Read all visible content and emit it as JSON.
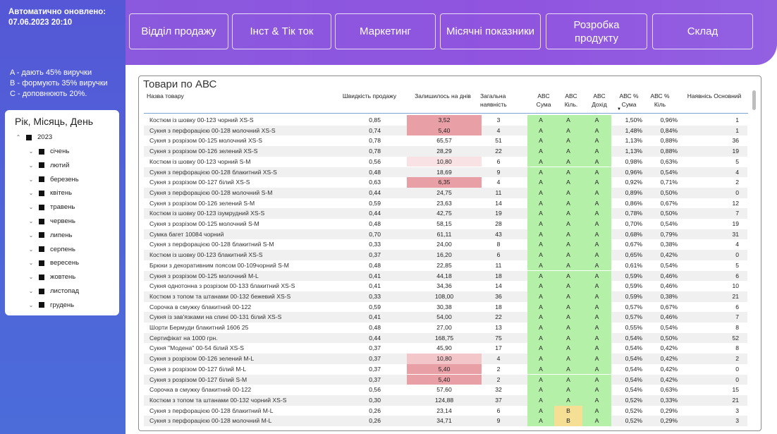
{
  "sidebar": {
    "updated_label": "Автоматично оновлено:",
    "updated_value": "07.06.2023 20:10",
    "legend": [
      "A - дають 45% виручки",
      "B - формують 35% виручки",
      "C - доповнюють 20%."
    ],
    "slicer": {
      "title": "Рік, Місяць, День",
      "year": "2023",
      "months": [
        "січень",
        "лютий",
        "березень",
        "квітень",
        "травень",
        "червень",
        "липень",
        "серпень",
        "вересень",
        "жовтень",
        "листопад",
        "грудень"
      ]
    }
  },
  "nav": [
    {
      "label": "Відділ продажу",
      "name": "nav-sales-department"
    },
    {
      "label": "Інст & Тік ток",
      "name": "nav-insta-tiktok"
    },
    {
      "label": "Маркетинг",
      "name": "nav-marketing"
    },
    {
      "label": "Місячні показники",
      "name": "nav-monthly-metrics"
    },
    {
      "label": "Розробка продукту",
      "name": "nav-product-development"
    },
    {
      "label": "Склад",
      "name": "nav-warehouse"
    }
  ],
  "table": {
    "title": "Товари по АВС",
    "columns": [
      "Назва товару",
      "Швидкість продажу",
      "Залишилось на днів",
      "Загальна наявність",
      "АВС Сума",
      "АВС Кіль.",
      "АВС Дохід",
      "АВС % Сума",
      "АВС % Кіль",
      "Наявнісь Основний"
    ],
    "sorted_column": "АВС % Сума",
    "sort_direction": "descending",
    "colors": {
      "abc_a": "#b5f0a8",
      "abc_b": "#f5df94",
      "low_stock_strong": "#e8a0a6",
      "low_stock_medium": "#f3c6ca",
      "low_stock_light": "#f9e2e4"
    },
    "rows": [
      {
        "name": "Костюм із шовку 00-123 чорний XS-S",
        "speed": "0,85",
        "days": "3,52",
        "total": "3",
        "abc_sum": "A",
        "abc_qty": "A",
        "abc_income": "A",
        "pct_sum": "1,50%",
        "pct_qty": "0,96%",
        "stock": "1",
        "days_level": "strong"
      },
      {
        "name": "Сукня з перфорацією 00-128 молочний XS-S",
        "speed": "0,74",
        "days": "5,40",
        "total": "4",
        "abc_sum": "A",
        "abc_qty": "A",
        "abc_income": "A",
        "pct_sum": "1,48%",
        "pct_qty": "0,84%",
        "stock": "1",
        "days_level": "strong"
      },
      {
        "name": "Сукня з розрізом 00-125 молочний XS-S",
        "speed": "0,78",
        "days": "65,57",
        "total": "51",
        "abc_sum": "A",
        "abc_qty": "A",
        "abc_income": "A",
        "pct_sum": "1,13%",
        "pct_qty": "0,88%",
        "stock": "36",
        "days_level": ""
      },
      {
        "name": "Сукня з розрізом 00-126 зелений XS-S",
        "speed": "0,78",
        "days": "28,29",
        "total": "22",
        "abc_sum": "A",
        "abc_qty": "A",
        "abc_income": "A",
        "pct_sum": "1,13%",
        "pct_qty": "0,88%",
        "stock": "19",
        "days_level": ""
      },
      {
        "name": "Костюм із шовку 00-123 чорний S-M",
        "speed": "0,56",
        "days": "10,80",
        "total": "6",
        "abc_sum": "A",
        "abc_qty": "A",
        "abc_income": "A",
        "pct_sum": "0,98%",
        "pct_qty": "0,63%",
        "stock": "5",
        "days_level": "light"
      },
      {
        "name": "Сукня з перфорацією 00-128 блакитний XS-S",
        "speed": "0,48",
        "days": "18,69",
        "total": "9",
        "abc_sum": "A",
        "abc_qty": "A",
        "abc_income": "A",
        "pct_sum": "0,96%",
        "pct_qty": "0,54%",
        "stock": "4",
        "days_level": ""
      },
      {
        "name": "Сукня з розрізом 00-127 білий XS-S",
        "speed": "0,63",
        "days": "6,35",
        "total": "4",
        "abc_sum": "A",
        "abc_qty": "A",
        "abc_income": "A",
        "pct_sum": "0,92%",
        "pct_qty": "0,71%",
        "stock": "2",
        "days_level": "strong"
      },
      {
        "name": "Сукня з перфорацією 00-128 молочний S-M",
        "speed": "0,44",
        "days": "24,75",
        "total": "11",
        "abc_sum": "A",
        "abc_qty": "A",
        "abc_income": "A",
        "pct_sum": "0,89%",
        "pct_qty": "0,50%",
        "stock": "0",
        "days_level": ""
      },
      {
        "name": "Сукня з розрізом 00-126 зелений S-M",
        "speed": "0,59",
        "days": "23,63",
        "total": "14",
        "abc_sum": "A",
        "abc_qty": "A",
        "abc_income": "A",
        "pct_sum": "0,86%",
        "pct_qty": "0,67%",
        "stock": "12",
        "days_level": ""
      },
      {
        "name": "Костюм із шовку 00-123 ізумрудний XS-S",
        "speed": "0,44",
        "days": "42,75",
        "total": "19",
        "abc_sum": "A",
        "abc_qty": "A",
        "abc_income": "A",
        "pct_sum": "0,78%",
        "pct_qty": "0,50%",
        "stock": "7",
        "days_level": ""
      },
      {
        "name": "Сукня з розрізом 00-125 молочний S-M",
        "speed": "0,48",
        "days": "58,15",
        "total": "28",
        "abc_sum": "A",
        "abc_qty": "A",
        "abc_income": "A",
        "pct_sum": "0,70%",
        "pct_qty": "0,54%",
        "stock": "19",
        "days_level": ""
      },
      {
        "name": "Сумка багет 10084 чорний",
        "speed": "0,70",
        "days": "61,11",
        "total": "43",
        "abc_sum": "A",
        "abc_qty": "A",
        "abc_income": "A",
        "pct_sum": "0,68%",
        "pct_qty": "0,79%",
        "stock": "31",
        "days_level": ""
      },
      {
        "name": "Сукня з перфорацією 00-128 блакитний S-M",
        "speed": "0,33",
        "days": "24,00",
        "total": "8",
        "abc_sum": "A",
        "abc_qty": "A",
        "abc_income": "A",
        "pct_sum": "0,67%",
        "pct_qty": "0,38%",
        "stock": "4",
        "days_level": ""
      },
      {
        "name": "Костюм із шовку 00-123 блакитний XS-S",
        "speed": "0,37",
        "days": "16,20",
        "total": "6",
        "abc_sum": "A",
        "abc_qty": "A",
        "abc_income": "A",
        "pct_sum": "0,65%",
        "pct_qty": "0,42%",
        "stock": "0",
        "days_level": ""
      },
      {
        "name": "Брюки з декоративним поясом 00-109чорний S-M",
        "speed": "0,48",
        "days": "22,85",
        "total": "11",
        "abc_sum": "A",
        "abc_qty": "A",
        "abc_income": "A",
        "pct_sum": "0,61%",
        "pct_qty": "0,54%",
        "stock": "5",
        "days_level": ""
      },
      {
        "name": "Сукня з розрізом 00-125 молочний M-L",
        "speed": "0,41",
        "days": "44,18",
        "total": "18",
        "abc_sum": "A",
        "abc_qty": "A",
        "abc_income": "A",
        "pct_sum": "0,59%",
        "pct_qty": "0,46%",
        "stock": "6",
        "days_level": ""
      },
      {
        "name": "Сукня однотонна з розрізом 00-133 блакитний XS-S",
        "speed": "0,41",
        "days": "34,36",
        "total": "14",
        "abc_sum": "A",
        "abc_qty": "A",
        "abc_income": "A",
        "pct_sum": "0,59%",
        "pct_qty": "0,46%",
        "stock": "10",
        "days_level": ""
      },
      {
        "name": "Костюм з топом та штанами 00-132 бежевий XS-S",
        "speed": "0,33",
        "days": "108,00",
        "total": "36",
        "abc_sum": "A",
        "abc_qty": "A",
        "abc_income": "A",
        "pct_sum": "0,59%",
        "pct_qty": "0,38%",
        "stock": "21",
        "days_level": ""
      },
      {
        "name": "Сорочка в смужку блакитний 00-122",
        "speed": "0,59",
        "days": "30,38",
        "total": "18",
        "abc_sum": "A",
        "abc_qty": "A",
        "abc_income": "A",
        "pct_sum": "0,57%",
        "pct_qty": "0,67%",
        "stock": "6",
        "days_level": ""
      },
      {
        "name": "Сукня із зав'язками на спині 00-131 білий XS-S",
        "speed": "0,41",
        "days": "54,00",
        "total": "22",
        "abc_sum": "A",
        "abc_qty": "A",
        "abc_income": "A",
        "pct_sum": "0,57%",
        "pct_qty": "0,46%",
        "stock": "7",
        "days_level": ""
      },
      {
        "name": "Шорти Бермуди блакитний 1606 25",
        "speed": "0,48",
        "days": "27,00",
        "total": "13",
        "abc_sum": "A",
        "abc_qty": "A",
        "abc_income": "A",
        "pct_sum": "0,55%",
        "pct_qty": "0,54%",
        "stock": "8",
        "days_level": ""
      },
      {
        "name": "Сертифікат на 1000 грн.",
        "speed": "0,44",
        "days": "168,75",
        "total": "75",
        "abc_sum": "A",
        "abc_qty": "A",
        "abc_income": "A",
        "pct_sum": "0,54%",
        "pct_qty": "0,50%",
        "stock": "52",
        "days_level": ""
      },
      {
        "name": "Сукня \"Модена\" 00-54 білий XS-S",
        "speed": "0,37",
        "days": "45,90",
        "total": "17",
        "abc_sum": "A",
        "abc_qty": "A",
        "abc_income": "A",
        "pct_sum": "0,54%",
        "pct_qty": "0,42%",
        "stock": "8",
        "days_level": ""
      },
      {
        "name": "Сукня з розрізом 00-126 зелений M-L",
        "speed": "0,37",
        "days": "10,80",
        "total": "4",
        "abc_sum": "A",
        "abc_qty": "A",
        "abc_income": "A",
        "pct_sum": "0,54%",
        "pct_qty": "0,42%",
        "stock": "2",
        "days_level": "medium"
      },
      {
        "name": "Сукня з розрізом 00-127 білий M-L",
        "speed": "0,37",
        "days": "5,40",
        "total": "2",
        "abc_sum": "A",
        "abc_qty": "A",
        "abc_income": "A",
        "pct_sum": "0,54%",
        "pct_qty": "0,42%",
        "stock": "0",
        "days_level": "strong"
      },
      {
        "name": "Сукня з розрізом 00-127 білий S-M",
        "speed": "0,37",
        "days": "5,40",
        "total": "2",
        "abc_sum": "A",
        "abc_qty": "A",
        "abc_income": "A",
        "pct_sum": "0,54%",
        "pct_qty": "0,42%",
        "stock": "0",
        "days_level": "strong"
      },
      {
        "name": "Сорочка в смужку блакитний 00-122",
        "speed": "0,56",
        "days": "57,60",
        "total": "32",
        "abc_sum": "A",
        "abc_qty": "A",
        "abc_income": "A",
        "pct_sum": "0,54%",
        "pct_qty": "0,63%",
        "stock": "15",
        "days_level": ""
      },
      {
        "name": "Костюм з топом та штанами 00-132 чорний XS-S",
        "speed": "0,30",
        "days": "124,88",
        "total": "37",
        "abc_sum": "A",
        "abc_qty": "A",
        "abc_income": "A",
        "pct_sum": "0,52%",
        "pct_qty": "0,33%",
        "stock": "21",
        "days_level": ""
      },
      {
        "name": "Сукня з перфорацією 00-128 блакитний M-L",
        "speed": "0,26",
        "days": "23,14",
        "total": "6",
        "abc_sum": "A",
        "abc_qty": "B",
        "abc_income": "A",
        "pct_sum": "0,52%",
        "pct_qty": "0,29%",
        "stock": "3",
        "days_level": ""
      },
      {
        "name": "Сукня з перфорацією 00-128 молочний M-L",
        "speed": "0,26",
        "days": "34,71",
        "total": "9",
        "abc_sum": "A",
        "abc_qty": "B",
        "abc_income": "A",
        "pct_sum": "0,52%",
        "pct_qty": "0,29%",
        "stock": "3",
        "days_level": ""
      }
    ]
  }
}
